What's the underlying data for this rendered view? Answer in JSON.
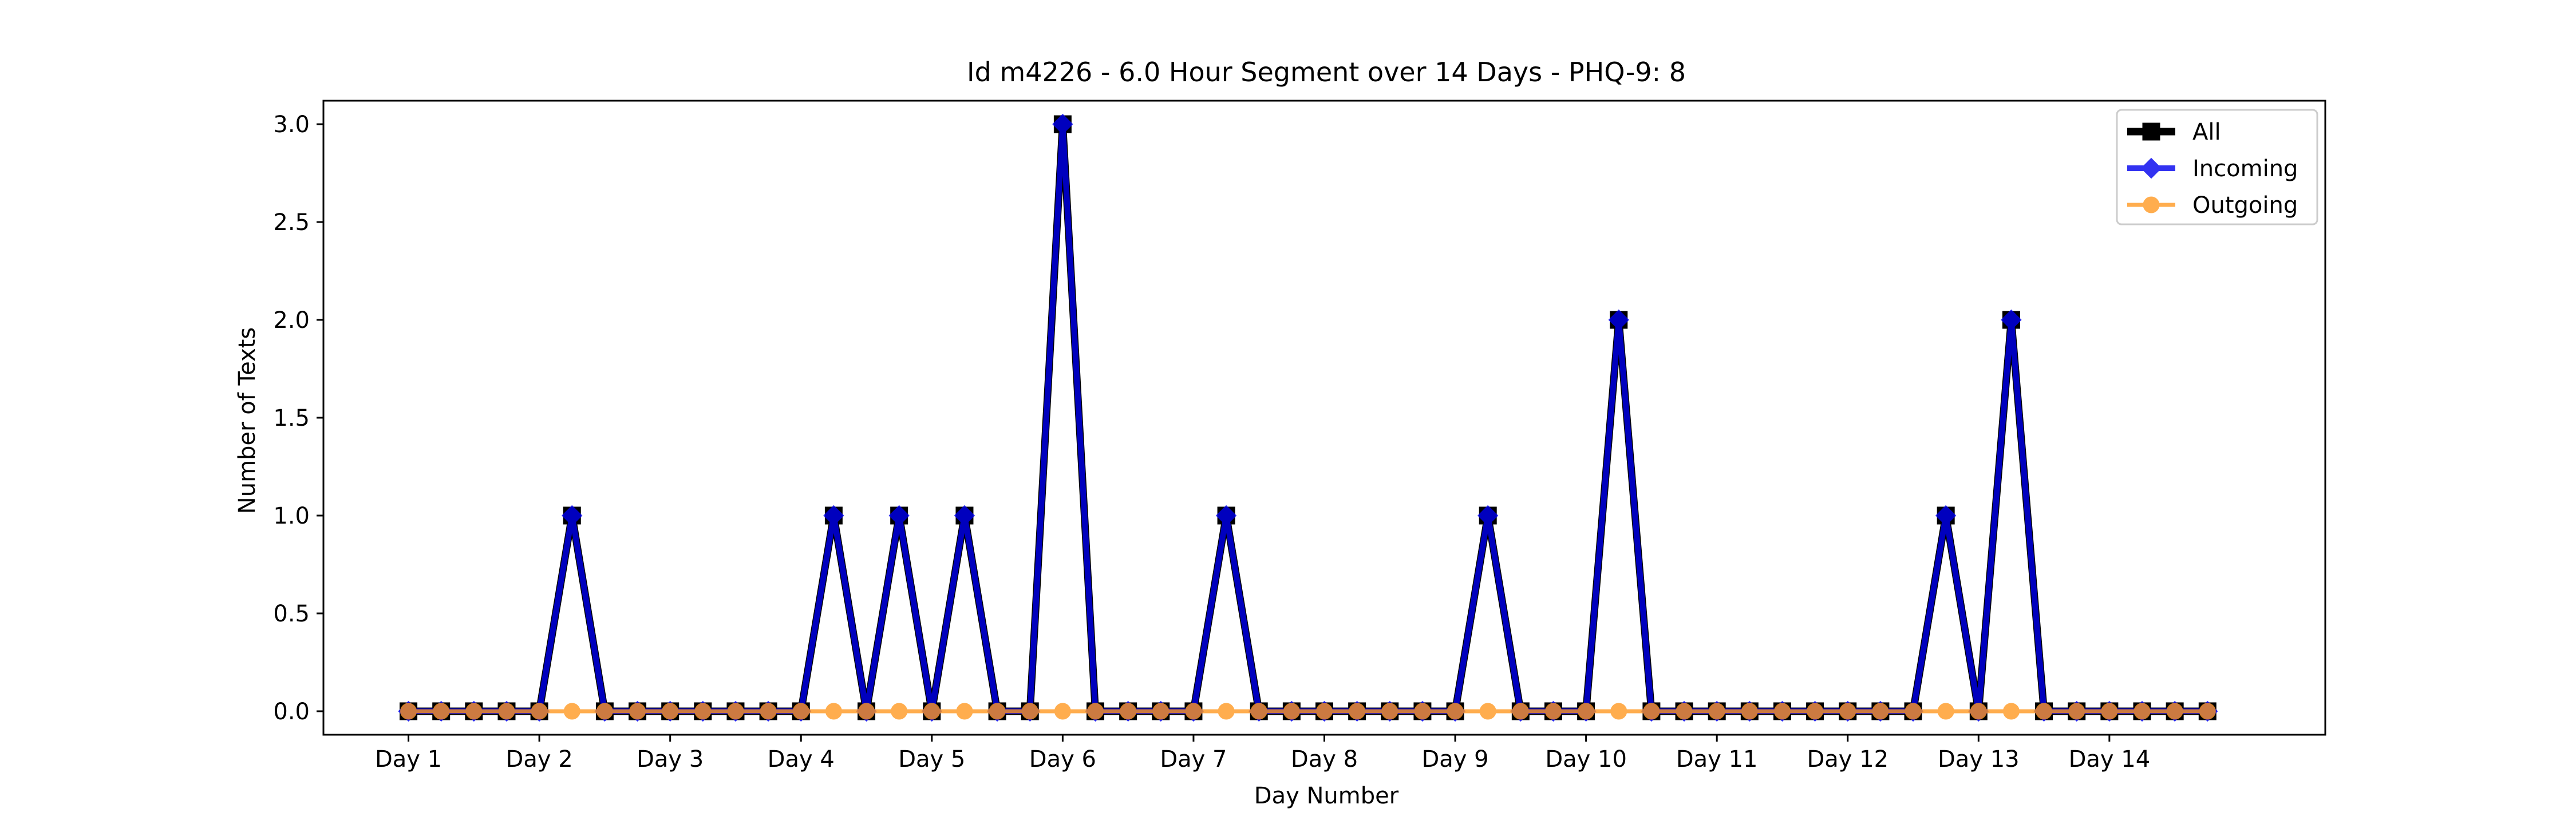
{
  "chart_data": {
    "type": "line",
    "title": "Id m4226 - 6.0 Hour Segment over 14 Days - PHQ-9: 8",
    "xlabel": "Day Number",
    "ylabel": "Number of Texts",
    "ylim": [
      -0.12,
      3.12
    ],
    "xlim": [
      -2.6,
      58.6
    ],
    "yticks": [
      0.0,
      0.5,
      1.0,
      1.5,
      2.0,
      2.5,
      3.0
    ],
    "ytick_labels": [
      "0.0",
      "0.5",
      "1.0",
      "1.5",
      "2.0",
      "2.5",
      "3.0"
    ],
    "xticks": [
      0,
      4,
      8,
      12,
      16,
      20,
      24,
      28,
      32,
      36,
      40,
      44,
      48,
      52
    ],
    "xtick_labels": [
      "Day 1",
      "Day 2",
      "Day 3",
      "Day 4",
      "Day 5",
      "Day 6",
      "Day 7",
      "Day 8",
      "Day 9",
      "Day 10",
      "Day 11",
      "Day 12",
      "Day 13",
      "Day 14"
    ],
    "grid": false,
    "legend_position": "top-right",
    "x": [
      0,
      1,
      2,
      3,
      4,
      5,
      6,
      7,
      8,
      9,
      10,
      11,
      12,
      13,
      14,
      15,
      16,
      17,
      18,
      19,
      20,
      21,
      22,
      23,
      24,
      25,
      26,
      27,
      28,
      29,
      30,
      31,
      32,
      33,
      34,
      35,
      36,
      37,
      38,
      39,
      40,
      41,
      42,
      43,
      44,
      45,
      46,
      47,
      48,
      49,
      50,
      51,
      52,
      53,
      54,
      55
    ],
    "series": [
      {
        "name": "All",
        "color": "#000000",
        "marker": "square",
        "values": [
          0,
          0,
          0,
          0,
          0,
          1,
          0,
          0,
          0,
          0,
          0,
          0,
          0,
          1,
          0,
          1,
          0,
          1,
          0,
          0,
          3,
          0,
          0,
          0,
          0,
          1,
          0,
          0,
          0,
          0,
          0,
          0,
          0,
          1,
          0,
          0,
          0,
          2,
          0,
          0,
          0,
          0,
          0,
          0,
          0,
          0,
          0,
          1,
          0,
          2,
          0,
          0,
          0,
          0,
          0,
          0
        ]
      },
      {
        "name": "Incoming",
        "color": "#0000ee",
        "marker": "diamond",
        "values": [
          0,
          0,
          0,
          0,
          0,
          1,
          0,
          0,
          0,
          0,
          0,
          0,
          0,
          1,
          0,
          1,
          0,
          1,
          0,
          0,
          3,
          0,
          0,
          0,
          0,
          1,
          0,
          0,
          0,
          0,
          0,
          0,
          0,
          1,
          0,
          0,
          0,
          2,
          0,
          0,
          0,
          0,
          0,
          0,
          0,
          0,
          0,
          1,
          0,
          2,
          0,
          0,
          0,
          0,
          0,
          0
        ]
      },
      {
        "name": "Outgoing",
        "color": "#ff9922",
        "marker": "circle",
        "values": [
          0,
          0,
          0,
          0,
          0,
          0,
          0,
          0,
          0,
          0,
          0,
          0,
          0,
          0,
          0,
          0,
          0,
          0,
          0,
          0,
          0,
          0,
          0,
          0,
          0,
          0,
          0,
          0,
          0,
          0,
          0,
          0,
          0,
          0,
          0,
          0,
          0,
          0,
          0,
          0,
          0,
          0,
          0,
          0,
          0,
          0,
          0,
          0,
          0,
          0,
          0,
          0,
          0,
          0,
          0,
          0
        ]
      }
    ]
  }
}
